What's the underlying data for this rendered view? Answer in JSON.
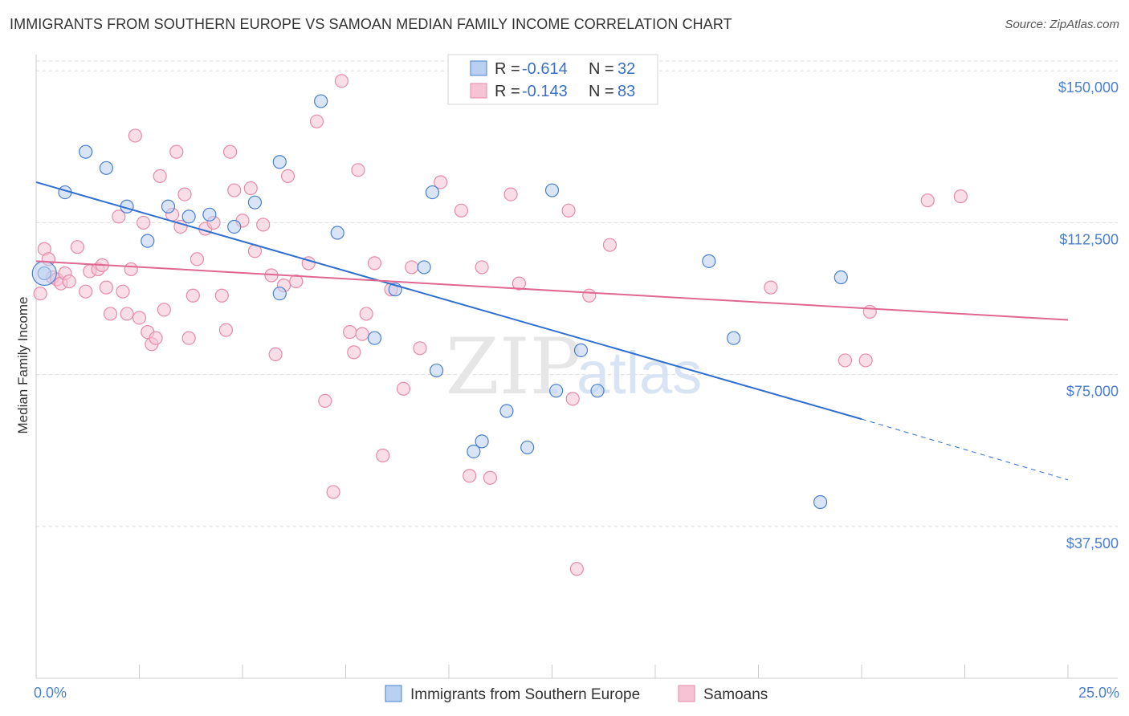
{
  "title": "IMMIGRANTS FROM SOUTHERN EUROPE VS SAMOAN MEDIAN FAMILY INCOME CORRELATION CHART",
  "source": "Source: ZipAtlas.com",
  "watermark": {
    "zip": "ZIP",
    "atlas": "atlas"
  },
  "colors": {
    "blue": "#4a7fd0",
    "blue_fill": "#b9d0f0",
    "blue_line": "#2f6fd1",
    "pink_fill": "#f6c3d4",
    "pink_stroke": "#e78aa9",
    "pink_line": "#e06890",
    "grid": "#d9d9d9"
  },
  "legend": {
    "rows": [
      {
        "r_label": "R = ",
        "r_value": "-0.614",
        "n_label": "N = ",
        "n_value": "32",
        "series": "blue"
      },
      {
        "r_label": "R = ",
        "r_value": "-0.143",
        "n_label": "N = ",
        "n_value": "83",
        "series": "pink"
      }
    ]
  },
  "chart_data": {
    "type": "scatter",
    "title": "IMMIGRANTS FROM SOUTHERN EUROPE VS SAMOAN MEDIAN FAMILY INCOME CORRELATION CHART",
    "xlabel": "",
    "ylabel": "Median Family Income",
    "xlim": [
      0,
      25
    ],
    "ylim": [
      0,
      155000
    ],
    "x_tick_labels": [
      "0.0%",
      "25.0%"
    ],
    "y_ticks": [
      37500,
      75000,
      112500,
      150000
    ],
    "y_tick_labels": [
      "$37,500",
      "$75,000",
      "$112,500",
      "$150,000"
    ],
    "grid": true,
    "legend_position": "bottom",
    "series": [
      {
        "name": "Immigrants from Southern Europe",
        "color": "blue",
        "trend": {
          "x0": 0.0,
          "y0": 122500,
          "x1": 20.0,
          "y1": 64000,
          "dash_to_x": 25.0,
          "dash_to_y": 49000
        },
        "points": [
          [
            0.2,
            100000
          ],
          [
            0.7,
            120000
          ],
          [
            1.2,
            130000
          ],
          [
            1.7,
            126000
          ],
          [
            2.2,
            116500
          ],
          [
            2.7,
            108000
          ],
          [
            3.2,
            116500
          ],
          [
            3.7,
            114000
          ],
          [
            4.2,
            114500
          ],
          [
            4.8,
            111500
          ],
          [
            5.3,
            117500
          ],
          [
            5.9,
            127500
          ],
          [
            5.9,
            95000
          ],
          [
            6.9,
            142500
          ],
          [
            7.3,
            110000
          ],
          [
            8.2,
            84000
          ],
          [
            8.7,
            96000
          ],
          [
            9.4,
            101500
          ],
          [
            9.6,
            120000
          ],
          [
            9.7,
            76000
          ],
          [
            10.6,
            56000
          ],
          [
            10.8,
            58500
          ],
          [
            11.4,
            66000
          ],
          [
            11.9,
            57000
          ],
          [
            12.5,
            120500
          ],
          [
            12.6,
            71000
          ],
          [
            13.2,
            81000
          ],
          [
            13.6,
            71000
          ],
          [
            16.3,
            103000
          ],
          [
            16.9,
            84000
          ],
          [
            19.0,
            43500
          ],
          [
            19.5,
            99000
          ]
        ]
      },
      {
        "name": "Samoans",
        "color": "pink",
        "trend": {
          "x0": 0.0,
          "y0": 103000,
          "x1": 25.0,
          "y1": 88500
        },
        "points": [
          [
            0.1,
            95000
          ],
          [
            0.2,
            106000
          ],
          [
            0.3,
            103500
          ],
          [
            0.4,
            99000
          ],
          [
            0.5,
            98500
          ],
          [
            0.6,
            97500
          ],
          [
            0.7,
            100000
          ],
          [
            0.8,
            98000
          ],
          [
            1.0,
            106500
          ],
          [
            1.2,
            95500
          ],
          [
            1.3,
            100500
          ],
          [
            1.5,
            101000
          ],
          [
            1.6,
            102000
          ],
          [
            1.7,
            96500
          ],
          [
            1.8,
            90000
          ],
          [
            2.0,
            114000
          ],
          [
            2.1,
            95500
          ],
          [
            2.2,
            90000
          ],
          [
            2.3,
            101000
          ],
          [
            2.4,
            134000
          ],
          [
            2.5,
            89000
          ],
          [
            2.6,
            112500
          ],
          [
            2.7,
            85500
          ],
          [
            2.8,
            82500
          ],
          [
            2.9,
            84000
          ],
          [
            3.0,
            124000
          ],
          [
            3.1,
            91000
          ],
          [
            3.3,
            114500
          ],
          [
            3.4,
            130000
          ],
          [
            3.5,
            111500
          ],
          [
            3.6,
            119500
          ],
          [
            3.7,
            84000
          ],
          [
            3.8,
            94500
          ],
          [
            3.9,
            103500
          ],
          [
            4.1,
            111000
          ],
          [
            4.3,
            112500
          ],
          [
            4.5,
            94500
          ],
          [
            4.6,
            86000
          ],
          [
            4.7,
            130000
          ],
          [
            4.8,
            120500
          ],
          [
            5.0,
            113000
          ],
          [
            5.2,
            121000
          ],
          [
            5.3,
            105500
          ],
          [
            5.5,
            112000
          ],
          [
            5.8,
            80000
          ],
          [
            6.1,
            124000
          ],
          [
            6.3,
            98000
          ],
          [
            6.6,
            102500
          ],
          [
            6.8,
            137500
          ],
          [
            7.0,
            68500
          ],
          [
            7.2,
            46000
          ],
          [
            7.4,
            147500
          ],
          [
            7.6,
            85500
          ],
          [
            7.7,
            80500
          ],
          [
            7.8,
            125500
          ],
          [
            8.0,
            90000
          ],
          [
            8.2,
            102500
          ],
          [
            8.4,
            55000
          ],
          [
            8.6,
            96000
          ],
          [
            8.9,
            71500
          ],
          [
            9.1,
            101500
          ],
          [
            9.3,
            81500
          ],
          [
            9.8,
            122500
          ],
          [
            10.3,
            115500
          ],
          [
            10.5,
            50000
          ],
          [
            10.8,
            101500
          ],
          [
            11.0,
            49500
          ],
          [
            11.5,
            119500
          ],
          [
            11.7,
            97500
          ],
          [
            12.9,
            115500
          ],
          [
            13.1,
            27000
          ],
          [
            13.4,
            94500
          ],
          [
            13.9,
            107000
          ],
          [
            17.8,
            96500
          ],
          [
            19.6,
            78500
          ],
          [
            20.1,
            78500
          ],
          [
            20.2,
            90500
          ],
          [
            21.6,
            118000
          ],
          [
            22.4,
            119000
          ],
          [
            13.0,
            69000
          ],
          [
            6.0,
            97000
          ],
          [
            5.7,
            99500
          ],
          [
            7.9,
            85000
          ]
        ]
      }
    ]
  },
  "bottom_legend": [
    {
      "label": "Immigrants from Southern Europe",
      "series": "blue"
    },
    {
      "label": "Samoans",
      "series": "pink"
    }
  ]
}
